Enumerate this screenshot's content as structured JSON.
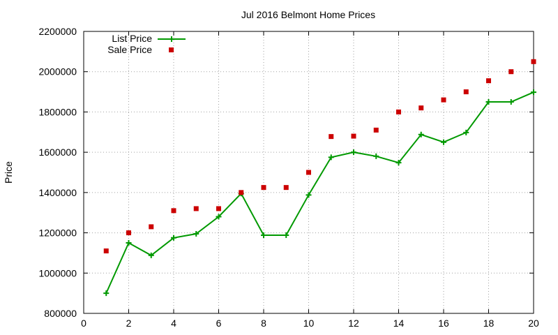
{
  "chart_data": {
    "type": "line",
    "title": "Jul 2016 Belmont Home Prices",
    "xlabel": "",
    "ylabel": "Price",
    "xlim": [
      0,
      20
    ],
    "ylim": [
      800000,
      2200000
    ],
    "xticks": [
      0,
      2,
      4,
      6,
      8,
      10,
      12,
      14,
      16,
      18,
      20
    ],
    "yticks": [
      800000,
      1000000,
      1200000,
      1400000,
      1600000,
      1800000,
      2000000,
      2200000
    ],
    "grid": true,
    "legend_position": "top-left",
    "x": [
      1,
      2,
      3,
      4,
      5,
      6,
      7,
      8,
      9,
      10,
      11,
      12,
      13,
      14,
      15,
      16,
      17,
      18,
      19,
      20
    ],
    "series": [
      {
        "name": "List Price",
        "style": "line-with-plus-markers",
        "color": "#009900",
        "values": [
          900000,
          1150000,
          1088000,
          1175000,
          1195000,
          1280000,
          1395000,
          1188000,
          1188000,
          1388000,
          1575000,
          1600000,
          1580000,
          1548000,
          1688000,
          1650000,
          1698000,
          1850000,
          1850000,
          1898000
        ]
      },
      {
        "name": "Sale Price",
        "style": "square-points",
        "color": "#cc0000",
        "values": [
          1110000,
          1200000,
          1230000,
          1310000,
          1320000,
          1320000,
          1400000,
          1425000,
          1425000,
          1500000,
          1678000,
          1680000,
          1710000,
          1800000,
          1820000,
          1860000,
          1900000,
          1955000,
          2000000,
          2050000
        ]
      }
    ]
  }
}
